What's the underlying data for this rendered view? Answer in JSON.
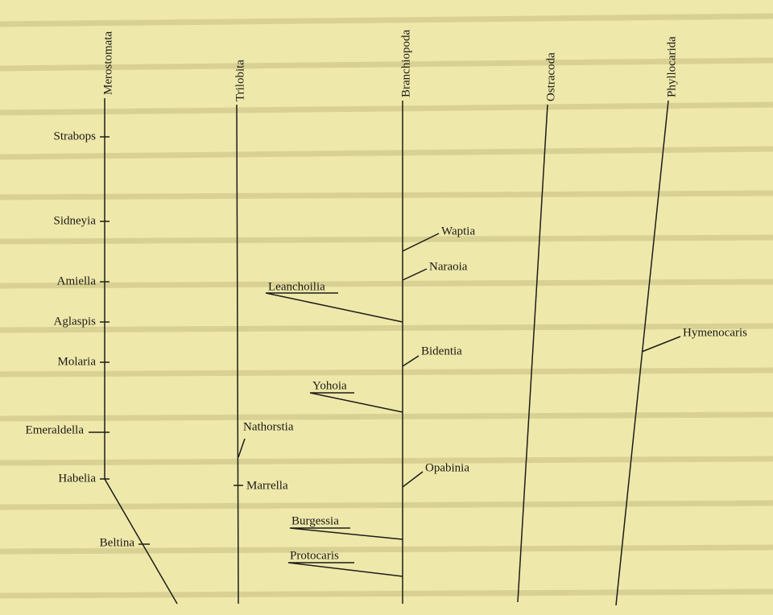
{
  "lineages": [
    {
      "label": "Merostomata"
    },
    {
      "label": "Trilobita"
    },
    {
      "label": "Branchiopoda"
    },
    {
      "label": "Ostracoda"
    },
    {
      "label": "Phyllocarida"
    }
  ],
  "taxa": [
    {
      "label": "Strabops"
    },
    {
      "label": "Sidneyia"
    },
    {
      "label": "Amiella"
    },
    {
      "label": "Aglaspis"
    },
    {
      "label": "Molaria"
    },
    {
      "label": "Emeraldella"
    },
    {
      "label": "Habelia"
    },
    {
      "label": "Beltina"
    },
    {
      "label": "Nathorstia"
    },
    {
      "label": "Marrella"
    },
    {
      "label": "Waptia"
    },
    {
      "label": "Naraoia"
    },
    {
      "label": "Leanchoilia"
    },
    {
      "label": "Bidentia"
    },
    {
      "label": "Yohoia"
    },
    {
      "label": "Opabinia"
    },
    {
      "label": "Burgessia"
    },
    {
      "label": "Protocaris"
    },
    {
      "label": "Hymenocaris"
    }
  ]
}
